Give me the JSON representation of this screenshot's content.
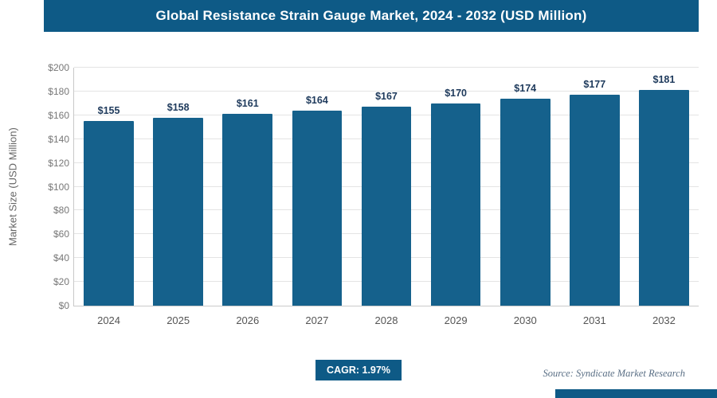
{
  "colors": {
    "brand": "#0e5a86",
    "bar": "#15618c",
    "grid": "#e4e4e4",
    "value_label": "#1e3a5c"
  },
  "header": {
    "title": "Global Resistance Strain Gauge Market, 2024 - 2032 (USD Million)"
  },
  "footer": {
    "cagr_label": "CAGR: 1.97%",
    "source": "Source: Syndicate Market Research"
  },
  "chart_data": {
    "type": "bar",
    "title": "Global Resistance Strain Gauge Market, 2024 - 2032 (USD Million)",
    "xlabel": "",
    "ylabel": "Market Size (USD Million)",
    "categories": [
      "2024",
      "2025",
      "2026",
      "2027",
      "2028",
      "2029",
      "2030",
      "2031",
      "2032"
    ],
    "values": [
      155,
      158,
      161,
      164,
      167,
      170,
      174,
      177,
      181
    ],
    "value_labels": [
      "$155",
      "$158",
      "$161",
      "$164",
      "$167",
      "$170",
      "$174",
      "$177",
      "$181"
    ],
    "ylim": [
      0,
      200
    ],
    "ytick_step": 20,
    "ytick_labels": [
      "$0",
      "$20",
      "$40",
      "$60",
      "$80",
      "$100",
      "$120",
      "$140",
      "$160",
      "$180",
      "$200"
    ],
    "grid": true,
    "legend": null
  }
}
